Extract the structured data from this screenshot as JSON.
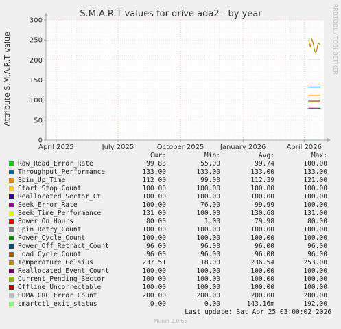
{
  "chart_data": {
    "type": "line",
    "title": "S.M.A.R.T values for drive ada2 - by year",
    "ylabel": "Attribute S.M.A.R.T value",
    "ylim": [
      0,
      300
    ],
    "yticks": [
      0,
      50,
      100,
      150,
      200,
      250,
      300
    ],
    "xlim": [
      "2025-03-17",
      "2026-04-30"
    ],
    "xticks": [
      {
        "date": "2025-04-01",
        "label": "April 2025"
      },
      {
        "date": "2025-07-01",
        "label": "July 2025"
      },
      {
        "date": "2025-10-01",
        "label": "October 2025"
      },
      {
        "date": "2026-01-01",
        "label": "January 2026"
      },
      {
        "date": "2026-04-01",
        "label": "April 2026"
      }
    ],
    "grid": true,
    "data_start": "2026-04-07",
    "data_end": "2026-04-25",
    "series": [
      {
        "name": "Raw_Read_Error_Rate",
        "color": "#00cc00",
        "cur": "99.83",
        "min": "55.00",
        "avg": "99.74",
        "max": "100.00",
        "value": 99.83
      },
      {
        "name": "Throughput_Performance",
        "color": "#0066b3",
        "cur": "133.00",
        "min": "133.00",
        "avg": "133.00",
        "max": "133.00",
        "value": 133
      },
      {
        "name": "Spin_Up_Time",
        "color": "#ff8000",
        "cur": "112.00",
        "min": "99.00",
        "avg": "112.39",
        "max": "121.00",
        "value": 112
      },
      {
        "name": "Start_Stop_Count",
        "color": "#ffcc00",
        "cur": "100.00",
        "min": "100.00",
        "avg": "100.00",
        "max": "100.00",
        "value": 100
      },
      {
        "name": "Reallocated_Sector_Ct",
        "color": "#330099",
        "cur": "100.00",
        "min": "100.00",
        "avg": "100.00",
        "max": "100.00",
        "value": 100
      },
      {
        "name": "Seek_Error_Rate",
        "color": "#990099",
        "cur": "100.00",
        "min": "76.00",
        "avg": "99.99",
        "max": "100.00",
        "value": 100
      },
      {
        "name": "Seek_Time_Performance",
        "color": "#ccff00",
        "cur": "131.00",
        "min": "100.00",
        "avg": "130.68",
        "max": "131.00",
        "value": 131
      },
      {
        "name": "Power_On_Hours",
        "color": "#ff0000",
        "cur": "80.00",
        "min": "1.00",
        "avg": "79.98",
        "max": "80.00",
        "value": 80
      },
      {
        "name": "Spin_Retry_Count",
        "color": "#808080",
        "cur": "100.00",
        "min": "100.00",
        "avg": "100.00",
        "max": "100.00",
        "value": 100
      },
      {
        "name": "Power_Cycle_Count",
        "color": "#008f00",
        "cur": "100.00",
        "min": "100.00",
        "avg": "100.00",
        "max": "100.00",
        "value": 100
      },
      {
        "name": "Power_Off_Retract_Count",
        "color": "#00487d",
        "cur": "96.00",
        "min": "96.00",
        "avg": "96.00",
        "max": "96.00",
        "value": 96
      },
      {
        "name": "Load_Cycle_Count",
        "color": "#b35a00",
        "cur": "96.00",
        "min": "96.00",
        "avg": "96.00",
        "max": "96.00",
        "value": 96
      },
      {
        "name": "Temperature_Celsius",
        "color": "#b38f00",
        "cur": "237.51",
        "min": "18.00",
        "avg": "236.54",
        "max": "253.00",
        "value": 237.51
      },
      {
        "name": "Reallocated_Event_Count",
        "color": "#6b006b",
        "cur": "100.00",
        "min": "100.00",
        "avg": "100.00",
        "max": "100.00",
        "value": 100
      },
      {
        "name": "Current_Pending_Sector",
        "color": "#8fb300",
        "cur": "100.00",
        "min": "100.00",
        "avg": "100.00",
        "max": "100.00",
        "value": 100
      },
      {
        "name": "Offline_Uncorrectable",
        "color": "#b30000",
        "cur": "100.00",
        "min": "100.00",
        "avg": "100.00",
        "max": "100.00",
        "value": 100
      },
      {
        "name": "UDMA_CRC_Error_Count",
        "color": "#bebebe",
        "cur": "200.00",
        "min": "200.00",
        "avg": "200.00",
        "max": "200.00",
        "value": 200
      },
      {
        "name": "smartctl_exit_status",
        "color": "#80ff80",
        "cur": "0.00",
        "min": "0.00",
        "avg": "143.16m",
        "max": "192.00",
        "value": 0
      }
    ],
    "temperature_trace": [
      249,
      247,
      238,
      232,
      246,
      251,
      246,
      238,
      226,
      221,
      218,
      224,
      233,
      241,
      242,
      239,
      240
    ]
  },
  "legend": {
    "col_cur": "Cur:",
    "col_min": "Min:",
    "col_avg": "Avg:",
    "col_max": "Max:"
  },
  "side_text": "RRDTOOL / TOBI OETIKER",
  "last_update": "Last update: Sat Apr 25 03:00:02 2026",
  "footer": "Munin 2.0.65"
}
